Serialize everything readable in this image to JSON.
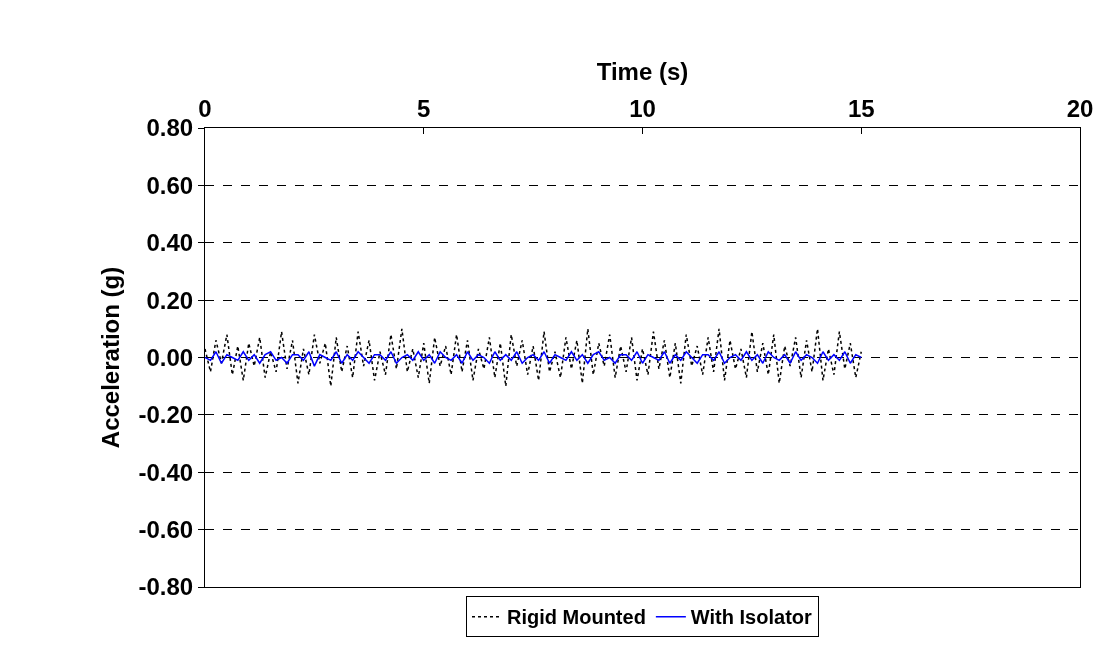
{
  "chart_data": {
    "type": "line",
    "xlabel": "Time (s)",
    "ylabel": "Acceleration (g)",
    "x": [
      0,
      0.125,
      0.25,
      0.375,
      0.5,
      0.625,
      0.75,
      0.875,
      1,
      1.125,
      1.25,
      1.375,
      1.5,
      1.625,
      1.75,
      1.875,
      2,
      2.125,
      2.25,
      2.375,
      2.5,
      2.625,
      2.75,
      2.875,
      3,
      3.125,
      3.25,
      3.375,
      3.5,
      3.625,
      3.75,
      3.875,
      4,
      4.125,
      4.25,
      4.375,
      4.5,
      4.625,
      4.75,
      4.875,
      5,
      5.125,
      5.25,
      5.375,
      5.5,
      5.625,
      5.75,
      5.875,
      6,
      6.125,
      6.25,
      6.375,
      6.5,
      6.625,
      6.75,
      6.875,
      7,
      7.125,
      7.25,
      7.375,
      7.5,
      7.625,
      7.75,
      7.875,
      8,
      8.125,
      8.25,
      8.375,
      8.5,
      8.625,
      8.75,
      8.875,
      9,
      9.125,
      9.25,
      9.375,
      9.5,
      9.625,
      9.75,
      9.875,
      10,
      10.125,
      10.25,
      10.375,
      10.5,
      10.625,
      10.75,
      10.875,
      11,
      11.125,
      11.25,
      11.375,
      11.5,
      11.625,
      11.75,
      11.875,
      12,
      12.125,
      12.25,
      12.375,
      12.5,
      12.625,
      12.75,
      12.875,
      13,
      13.125,
      13.25,
      13.375,
      13.5,
      13.625,
      13.75,
      13.875,
      14,
      14.125,
      14.25,
      14.375,
      14.5,
      14.625,
      14.75,
      14.875,
      15
    ],
    "series": [
      {
        "name": "Rigid Mounted",
        "color": "#000000",
        "line_style": "dotted",
        "values": [
          0.03,
          -0.05,
          0.06,
          -0.02,
          0.08,
          -0.06,
          0.04,
          -0.08,
          0.05,
          -0.03,
          0.07,
          -0.07,
          0.02,
          -0.05,
          0.09,
          -0.04,
          0.06,
          -0.09,
          0.03,
          -0.06,
          0.08,
          -0.02,
          0.05,
          -0.1,
          0.07,
          -0.05,
          0.04,
          -0.07,
          0.09,
          -0.03,
          0.06,
          -0.08,
          0.02,
          -0.06,
          0.08,
          -0.04,
          0.1,
          -0.05,
          0.03,
          -0.07,
          0.05,
          -0.09,
          0.07,
          -0.03,
          0.04,
          -0.06,
          0.08,
          -0.05,
          0.06,
          -0.08,
          0.03,
          -0.04,
          0.07,
          -0.07,
          0.05,
          -0.1,
          0.08,
          -0.03,
          0.06,
          -0.06,
          0.04,
          -0.08,
          0.09,
          -0.05,
          0.02,
          -0.07,
          0.07,
          -0.04,
          0.06,
          -0.09,
          0.1,
          -0.06,
          0.05,
          -0.03,
          0.08,
          -0.07,
          0.04,
          -0.05,
          0.07,
          -0.08,
          0.03,
          -0.06,
          0.09,
          -0.04,
          0.06,
          -0.07,
          0.05,
          -0.09,
          0.08,
          -0.03,
          0.04,
          -0.06,
          0.07,
          -0.05,
          0.1,
          -0.08,
          0.06,
          -0.04,
          0.03,
          -0.07,
          0.09,
          -0.05,
          0.05,
          -0.06,
          0.08,
          -0.09,
          0.04,
          -0.03,
          0.07,
          -0.07,
          0.06,
          -0.05,
          0.1,
          -0.08,
          0.03,
          -0.06,
          0.09,
          -0.04,
          0.05,
          -0.07,
          0.02
        ]
      },
      {
        "name": "With Isolator",
        "color": "#0000ff",
        "line_style": "solid",
        "values": [
          0.0,
          -0.01,
          0.02,
          -0.02,
          0.01,
          0.0,
          -0.01,
          0.02,
          -0.01,
          0.01,
          -0.02,
          0.01,
          0.02,
          -0.01,
          0.0,
          -0.02,
          0.01,
          0.01,
          -0.01,
          0.02,
          -0.03,
          0.01,
          0.0,
          -0.01,
          0.02,
          -0.02,
          0.01,
          -0.01,
          0.02,
          0.0,
          -0.02,
          0.01,
          0.01,
          -0.01,
          0.02,
          -0.02,
          0.0,
          0.01,
          -0.01,
          0.02,
          -0.01,
          0.01,
          -0.02,
          0.02,
          0.0,
          -0.01,
          0.01,
          -0.02,
          0.02,
          -0.01,
          0.01,
          0.0,
          -0.02,
          0.02,
          -0.01,
          0.01,
          -0.01,
          0.02,
          -0.02,
          0.0,
          0.01,
          -0.01,
          0.02,
          -0.02,
          0.01,
          0.0,
          -0.01,
          0.02,
          -0.01,
          0.01,
          -0.02,
          0.01,
          0.02,
          -0.01,
          0.0,
          -0.02,
          0.01,
          0.01,
          -0.01,
          0.02,
          -0.02,
          0.01,
          0.0,
          -0.01,
          0.02,
          -0.02,
          0.01,
          -0.01,
          0.02,
          0.0,
          -0.02,
          0.01,
          0.01,
          -0.01,
          0.02,
          -0.02,
          0.0,
          0.01,
          -0.01,
          0.02,
          -0.01,
          0.01,
          -0.02,
          0.02,
          0.0,
          -0.01,
          0.01,
          -0.02,
          0.02,
          -0.01,
          0.01,
          0.0,
          -0.02,
          0.02,
          -0.01,
          0.01,
          -0.01,
          0.02,
          -0.02,
          0.01,
          0.0
        ]
      }
    ],
    "xlim": [
      0,
      20
    ],
    "xticks": [
      0,
      5,
      10,
      15,
      20
    ],
    "ylim": [
      -0.8,
      0.8
    ],
    "yticks": [
      {
        "value": -0.8,
        "label": "-0.80"
      },
      {
        "value": -0.6,
        "label": "-0.60"
      },
      {
        "value": -0.4,
        "label": "-0.40"
      },
      {
        "value": -0.2,
        "label": "-0.20"
      },
      {
        "value": 0,
        "label": "0.00"
      },
      {
        "value": 0.2,
        "label": "0.20"
      },
      {
        "value": 0.4,
        "label": "0.40"
      },
      {
        "value": 0.6,
        "label": "0.60"
      },
      {
        "value": 0.8,
        "label": "0.80"
      }
    ],
    "grid": "y",
    "legend": "bottom",
    "marker": "none"
  }
}
